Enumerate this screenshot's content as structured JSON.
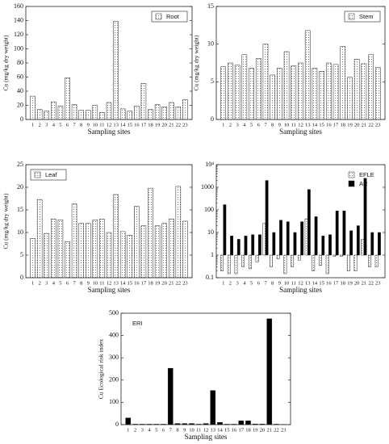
{
  "chart_data": [
    {
      "type": "bar",
      "xlabel": "Sampling sites",
      "ylabel": "Cu (mg/kg dry weight)",
      "categories": [
        "1",
        "2",
        "3",
        "4",
        "5",
        "6",
        "7",
        "8",
        "9",
        "10",
        "11",
        "12",
        "13",
        "14",
        "15",
        "16",
        "17",
        "18",
        "19",
        "20",
        "21",
        "22",
        "23"
      ],
      "series": [
        {
          "name": "Root",
          "color": "#ffffff",
          "hatch": true,
          "values": [
            33,
            14,
            12,
            25,
            19,
            59,
            21,
            13,
            13,
            20,
            10,
            24,
            139,
            15,
            12,
            19,
            51,
            14,
            21,
            18,
            24,
            18,
            28
          ]
        }
      ],
      "ylim": [
        0,
        160
      ],
      "yticks": [
        0,
        20,
        40,
        60,
        80,
        100,
        120,
        140,
        160
      ],
      "legend": "upper right",
      "legend_box": true
    },
    {
      "type": "bar",
      "xlabel": "Sampling sites",
      "ylabel": "Cu (mg/kg dry weight)",
      "categories": [
        "1",
        "2",
        "3",
        "4",
        "5",
        "6",
        "7",
        "8",
        "9",
        "10",
        "11",
        "12",
        "13",
        "14",
        "15",
        "16",
        "17",
        "18",
        "19",
        "20",
        "21",
        "22",
        "23"
      ],
      "series": [
        {
          "name": "Stem",
          "color": "#ffffff",
          "hatch": true,
          "values": [
            7.0,
            7.5,
            7.2,
            8.6,
            6.8,
            8.1,
            10.0,
            5.9,
            6.8,
            9.0,
            7.1,
            7.5,
            11.8,
            6.8,
            6.4,
            7.5,
            7.3,
            9.7,
            5.6,
            8.0,
            7.4,
            8.6,
            6.9
          ]
        }
      ],
      "ylim": [
        0,
        15
      ],
      "yticks": [
        0,
        5,
        10,
        15
      ],
      "legend": "upper right",
      "legend_box": true
    },
    {
      "type": "bar",
      "xlabel": "Sampling sites",
      "ylabel": "Cu (mg/kg dry weight)",
      "categories": [
        "1",
        "2",
        "3",
        "4",
        "5",
        "6",
        "7",
        "8",
        "9",
        "10",
        "11",
        "12",
        "13",
        "14",
        "15",
        "16",
        "17",
        "18",
        "19",
        "20",
        "21",
        "22",
        "23"
      ],
      "series": [
        {
          "name": "Leaf",
          "color": "#ffffff",
          "hatch": true,
          "values": [
            8.7,
            17.3,
            9.8,
            13.0,
            12.8,
            8.0,
            16.3,
            12.0,
            12.0,
            12.8,
            13.0,
            10.0,
            18.4,
            10.2,
            9.4,
            15.8,
            11.5,
            19.8,
            11.5,
            12.0,
            13.0,
            20.2,
            12.5
          ]
        }
      ],
      "ylim": [
        0,
        25
      ],
      "yticks": [
        0,
        5,
        10,
        15,
        20,
        25
      ],
      "legend": "upper left",
      "legend_box": true
    },
    {
      "type": "bar",
      "xlabel": "Sampling sites",
      "log_scale": true,
      "categories": [
        "1",
        "2",
        "3",
        "4",
        "5",
        "6",
        "7",
        "8",
        "9",
        "10",
        "11",
        "12",
        "13",
        "14",
        "15",
        "16",
        "17",
        "18",
        "19",
        "20",
        "21",
        "22",
        "23"
      ],
      "series": [
        {
          "name": "EFLE",
          "color": "#ffffff",
          "hatch": true,
          "values": [
            0.2,
            0.15,
            0.15,
            0.3,
            0.25,
            0.5,
            25,
            0.3,
            0.7,
            0.15,
            0.3,
            0.6,
            40,
            0.2,
            0.35,
            0.15,
            0.9,
            0.9,
            0.2,
            0.2,
            5,
            0.3,
            0.3
          ]
        },
        {
          "name": "AR",
          "color": "#000000",
          "hatch": false,
          "values": [
            170,
            7,
            5,
            7,
            8,
            8,
            2000,
            10,
            35,
            30,
            10,
            30,
            800,
            50,
            7,
            8,
            90,
            90,
            12,
            20,
            2500,
            10,
            10
          ]
        }
      ],
      "ylim": [
        0.1,
        10000
      ],
      "yticks": [
        0.1,
        1,
        10,
        100,
        1000,
        {
          "value": 10000,
          "label": "10⁴"
        }
      ],
      "legend": "upper right",
      "legend_box": false
    },
    {
      "type": "bar",
      "xlabel": "Sampling sites",
      "ylabel": "Cu Ecological risk index",
      "categories": [
        "1",
        "2",
        "3",
        "4",
        "5",
        "6",
        "7",
        "8",
        "9",
        "10",
        "11",
        "12",
        "13",
        "14",
        "15",
        "16",
        "17",
        "18",
        "19",
        "20",
        "21",
        "22",
        "23"
      ],
      "series": [
        {
          "name": "ERI",
          "color": "#000000",
          "hatch": false,
          "legend_swatch": false,
          "values": [
            30,
            2,
            2,
            2,
            2,
            2,
            253,
            5,
            5,
            5,
            2,
            5,
            153,
            10,
            2,
            2,
            17,
            17,
            3,
            3,
            475,
            2,
            1
          ]
        }
      ],
      "ylim": [
        0,
        500
      ],
      "yticks": [
        0,
        100,
        200,
        300,
        400,
        500
      ],
      "legend": "upper left",
      "legend_box": false
    }
  ]
}
